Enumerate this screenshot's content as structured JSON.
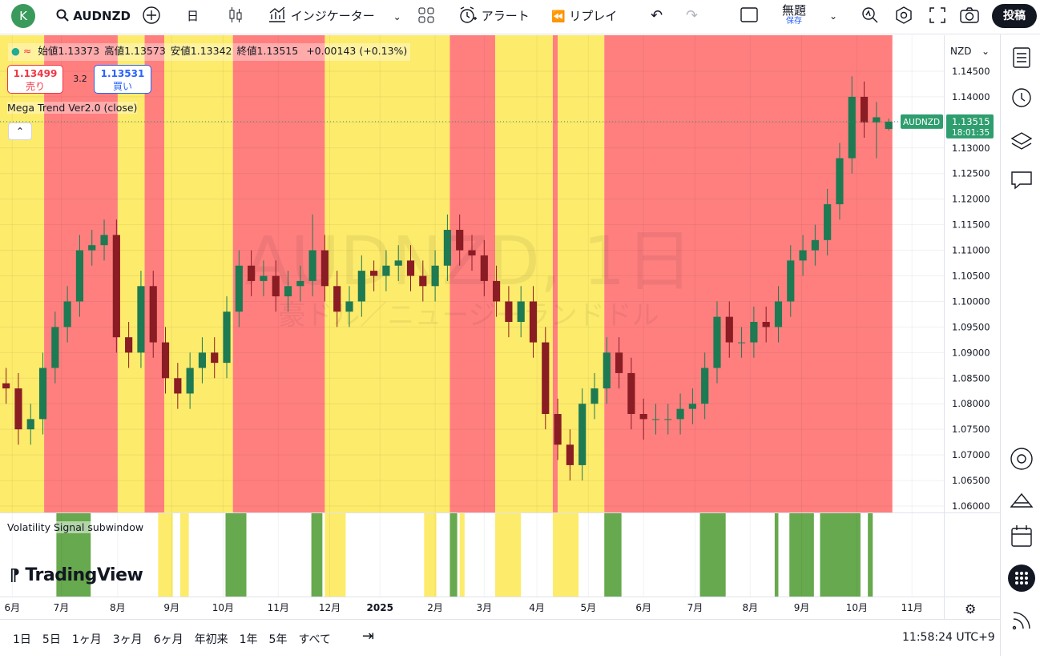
{
  "toolbar": {
    "avatar": "K",
    "symbol": "AUDNZD",
    "interval": "日",
    "indicators": "インジケーター",
    "alert": "アラート",
    "replay": "リプレイ",
    "layout_name": "無題",
    "save": "保存",
    "publish": "投稿"
  },
  "chart_data": {
    "type": "candlestick",
    "watermark_title": "AUDNZD, 1日",
    "watermark_subtitle": "豪ドル／ニュージーランドドル",
    "legend": {
      "labels": [
        "始値",
        "高値",
        "安値",
        "終値"
      ],
      "change": "+0.00143 (+0.13%)"
    },
    "quote": {
      "sell": "1.13499",
      "sell_label": "売り",
      "spread": "3.2",
      "buy": "1.13531",
      "buy_label": "買い"
    },
    "indicator": "Mega Trend Ver2.0 (close)",
    "currency": "NZD",
    "logo": "TradingView",
    "up_color": "#1d7a52",
    "down_color": "#8a1c24",
    "grid": true,
    "xlim": [
      0,
      77
    ],
    "xticks": [
      {
        "value": 1,
        "label": "6月"
      },
      {
        "value": 5,
        "label": "7月"
      },
      {
        "value": 9.6,
        "label": "8月"
      },
      {
        "value": 14,
        "label": "9月"
      },
      {
        "value": 18.2,
        "label": "10月"
      },
      {
        "value": 22.7,
        "label": "11月"
      },
      {
        "value": 26.9,
        "label": "12月"
      },
      {
        "value": 31,
        "label": "2025"
      },
      {
        "value": 35.5,
        "label": "2月"
      },
      {
        "value": 39.5,
        "label": "3月"
      },
      {
        "value": 43.8,
        "label": "4月"
      },
      {
        "value": 48,
        "label": "5月"
      },
      {
        "value": 52.5,
        "label": "6月"
      },
      {
        "value": 56.7,
        "label": "7月"
      },
      {
        "value": 61.2,
        "label": "8月"
      },
      {
        "value": 65.4,
        "label": "9月"
      },
      {
        "value": 69.9,
        "label": "10月"
      },
      {
        "value": 74.4,
        "label": "11月"
      }
    ],
    "ylim": [
      1.05875,
      1.15204
    ],
    "yticks": [
      {
        "value": 1.06,
        "label": "1.06000"
      },
      {
        "value": 1.065,
        "label": "1.06500"
      },
      {
        "value": 1.07,
        "label": "1.07000"
      },
      {
        "value": 1.075,
        "label": "1.07500"
      },
      {
        "value": 1.08,
        "label": "1.08000"
      },
      {
        "value": 1.085,
        "label": "1.08500"
      },
      {
        "value": 1.09,
        "label": "1.09000"
      },
      {
        "value": 1.095,
        "label": "1.09500"
      },
      {
        "value": 1.1,
        "label": "1.10000"
      },
      {
        "value": 1.105,
        "label": "1.10500"
      },
      {
        "value": 1.11,
        "label": "1.11000"
      },
      {
        "value": 1.115,
        "label": "1.11500"
      },
      {
        "value": 1.12,
        "label": "1.12000"
      },
      {
        "value": 1.125,
        "label": "1.12500"
      },
      {
        "value": 1.13,
        "label": "1.13000"
      },
      {
        "value": 1.135,
        "label": "1.13500"
      },
      {
        "value": 1.14,
        "label": "1.14000"
      },
      {
        "value": 1.145,
        "label": "1.14500"
      }
    ],
    "trend_bands": [
      {
        "from": 0,
        "to": 3.6,
        "color": "#fdeb6c"
      },
      {
        "from": 3.6,
        "to": 9.6,
        "color": "#ff7f7f"
      },
      {
        "from": 9.6,
        "to": 11.8,
        "color": "#fdeb6c"
      },
      {
        "from": 11.8,
        "to": 13.4,
        "color": "#ff7f7f"
      },
      {
        "from": 13.4,
        "to": 19,
        "color": "#fdeb6c"
      },
      {
        "from": 19,
        "to": 26.5,
        "color": "#ff7f7f"
      },
      {
        "from": 26.5,
        "to": 36.7,
        "color": "#fdeb6c"
      },
      {
        "from": 36.7,
        "to": 40.4,
        "color": "#ff7f7f"
      },
      {
        "from": 40.4,
        "to": 45.1,
        "color": "#fdeb6c"
      },
      {
        "from": 45.1,
        "to": 45.5,
        "color": "#ff7f7f"
      },
      {
        "from": 45.5,
        "to": 49.3,
        "color": "#fdeb6c"
      },
      {
        "from": 49.3,
        "to": 72.8,
        "color": "#ff7f7f"
      }
    ],
    "subwindow": {
      "title": "Volatility Signal subwindow",
      "bands": [
        {
          "from": 4.6,
          "to": 7.4,
          "color": "#67a94e"
        },
        {
          "from": 12.9,
          "to": 14.1,
          "color": "#fdeb6c"
        },
        {
          "from": 14.7,
          "to": 15.4,
          "color": "#fdeb6c"
        },
        {
          "from": 18.4,
          "to": 20.1,
          "color": "#67a94e"
        },
        {
          "from": 25.4,
          "to": 26.3,
          "color": "#67a94e"
        },
        {
          "from": 26.5,
          "to": 28.2,
          "color": "#fdeb6c"
        },
        {
          "from": 34.6,
          "to": 35.6,
          "color": "#fdeb6c"
        },
        {
          "from": 36.7,
          "to": 37.3,
          "color": "#67a94e"
        },
        {
          "from": 37.5,
          "to": 37.9,
          "color": "#fdeb6c"
        },
        {
          "from": 40.4,
          "to": 42.5,
          "color": "#fdeb6c"
        },
        {
          "from": 45.1,
          "to": 47.2,
          "color": "#fdeb6c"
        },
        {
          "from": 49.3,
          "to": 50.7,
          "color": "#67a94e"
        },
        {
          "from": 57.1,
          "to": 59.2,
          "color": "#67a94e"
        },
        {
          "from": 63.2,
          "to": 63.5,
          "color": "#67a94e"
        },
        {
          "from": 64.4,
          "to": 66.4,
          "color": "#67a94e"
        },
        {
          "from": 66.9,
          "to": 70.2,
          "color": "#67a94e"
        },
        {
          "from": 70.8,
          "to": 71.2,
          "color": "#67a94e"
        }
      ]
    },
    "last_price": {
      "value": 1.13515,
      "label": "1.13515",
      "symbol": "AUDNZD",
      "countdown": "18:01:35"
    },
    "ohlc": [
      [
        1.084,
        1.087,
        1.08,
        1.083
      ],
      [
        1.083,
        1.086,
        1.072,
        1.075
      ],
      [
        1.075,
        1.08,
        1.072,
        1.077
      ],
      [
        1.077,
        1.09,
        1.074,
        1.087
      ],
      [
        1.087,
        1.098,
        1.084,
        1.095
      ],
      [
        1.095,
        1.103,
        1.092,
        1.1
      ],
      [
        1.1,
        1.113,
        1.097,
        1.11
      ],
      [
        1.11,
        1.114,
        1.107,
        1.111
      ],
      [
        1.111,
        1.116,
        1.108,
        1.113
      ],
      [
        1.113,
        1.116,
        1.09,
        1.093
      ],
      [
        1.093,
        1.096,
        1.087,
        1.09
      ],
      [
        1.09,
        1.106,
        1.087,
        1.103
      ],
      [
        1.103,
        1.106,
        1.089,
        1.092
      ],
      [
        1.092,
        1.095,
        1.082,
        1.085
      ],
      [
        1.085,
        1.088,
        1.079,
        1.082
      ],
      [
        1.082,
        1.09,
        1.079,
        1.087
      ],
      [
        1.087,
        1.093,
        1.084,
        1.09
      ],
      [
        1.09,
        1.093,
        1.085,
        1.088
      ],
      [
        1.088,
        1.101,
        1.085,
        1.098
      ],
      [
        1.098,
        1.11,
        1.095,
        1.107
      ],
      [
        1.107,
        1.11,
        1.101,
        1.104
      ],
      [
        1.104,
        1.108,
        1.101,
        1.105
      ],
      [
        1.105,
        1.108,
        1.098,
        1.101
      ],
      [
        1.101,
        1.106,
        1.098,
        1.103
      ],
      [
        1.103,
        1.107,
        1.1,
        1.104
      ],
      [
        1.104,
        1.117,
        1.101,
        1.11
      ],
      [
        1.11,
        1.113,
        1.1,
        1.103
      ],
      [
        1.103,
        1.106,
        1.095,
        1.098
      ],
      [
        1.098,
        1.103,
        1.095,
        1.1
      ],
      [
        1.1,
        1.109,
        1.097,
        1.106
      ],
      [
        1.106,
        1.108,
        1.102,
        1.105
      ],
      [
        1.105,
        1.11,
        1.102,
        1.107
      ],
      [
        1.107,
        1.111,
        1.104,
        1.108
      ],
      [
        1.108,
        1.111,
        1.102,
        1.105
      ],
      [
        1.105,
        1.108,
        1.1,
        1.103
      ],
      [
        1.103,
        1.11,
        1.1,
        1.107
      ],
      [
        1.107,
        1.117,
        1.104,
        1.114
      ],
      [
        1.114,
        1.117,
        1.107,
        1.11
      ],
      [
        1.11,
        1.113,
        1.106,
        1.109
      ],
      [
        1.109,
        1.112,
        1.101,
        1.104
      ],
      [
        1.104,
        1.107,
        1.097,
        1.1
      ],
      [
        1.1,
        1.103,
        1.093,
        1.096
      ],
      [
        1.096,
        1.103,
        1.093,
        1.1
      ],
      [
        1.1,
        1.103,
        1.089,
        1.092
      ],
      [
        1.092,
        1.095,
        1.075,
        1.078
      ],
      [
        1.078,
        1.081,
        1.069,
        1.072
      ],
      [
        1.072,
        1.075,
        1.065,
        1.068
      ],
      [
        1.068,
        1.083,
        1.065,
        1.08
      ],
      [
        1.08,
        1.086,
        1.077,
        1.083
      ],
      [
        1.083,
        1.093,
        1.08,
        1.09
      ],
      [
        1.09,
        1.093,
        1.083,
        1.086
      ],
      [
        1.086,
        1.089,
        1.075,
        1.078
      ],
      [
        1.078,
        1.081,
        1.073,
        1.077
      ],
      [
        1.077,
        1.08,
        1.074,
        1.077
      ],
      [
        1.077,
        1.08,
        1.074,
        1.077
      ],
      [
        1.077,
        1.082,
        1.074,
        1.079
      ],
      [
        1.079,
        1.083,
        1.076,
        1.08
      ],
      [
        1.08,
        1.09,
        1.077,
        1.087
      ],
      [
        1.087,
        1.1,
        1.084,
        1.097
      ],
      [
        1.097,
        1.1,
        1.089,
        1.092
      ],
      [
        1.092,
        1.095,
        1.089,
        1.092
      ],
      [
        1.092,
        1.099,
        1.089,
        1.096
      ],
      [
        1.096,
        1.099,
        1.092,
        1.095
      ],
      [
        1.095,
        1.103,
        1.092,
        1.1
      ],
      [
        1.1,
        1.111,
        1.097,
        1.108
      ],
      [
        1.108,
        1.113,
        1.105,
        1.11
      ],
      [
        1.11,
        1.115,
        1.107,
        1.112
      ],
      [
        1.112,
        1.122,
        1.109,
        1.119
      ],
      [
        1.119,
        1.131,
        1.116,
        1.128
      ],
      [
        1.128,
        1.144,
        1.125,
        1.14
      ],
      [
        1.14,
        1.143,
        1.132,
        1.135
      ],
      [
        1.135,
        1.139,
        1.128,
        1.136
      ],
      [
        1.13373,
        1.13573,
        1.13342,
        1.13515
      ]
    ]
  },
  "bottom_bar": {
    "ranges": [
      "1日",
      "5日",
      "1ヶ月",
      "3ヶ月",
      "6ヶ月",
      "年初来",
      "1年",
      "5年",
      "すべて"
    ],
    "clock": "11:58:24 UTC+9"
  }
}
